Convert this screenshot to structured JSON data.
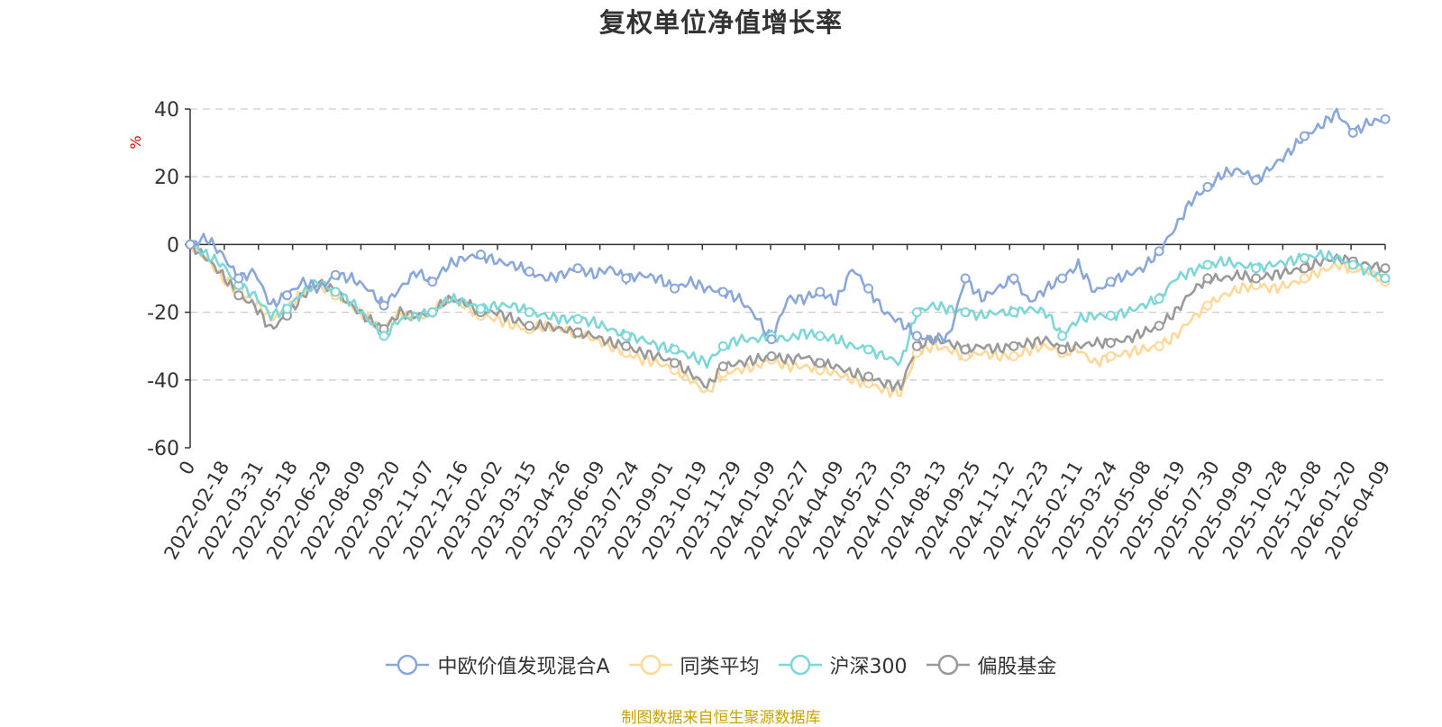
{
  "chart_data": {
    "type": "line",
    "title": "复权单位净值增长率",
    "ylabel": "%",
    "ylim": [
      -60,
      40
    ],
    "yticks": [
      "40",
      "20",
      "0",
      "-20",
      "-40",
      "-60"
    ],
    "xticks": [
      "0",
      "2022-02-18",
      "2022-03-31",
      "2022-05-18",
      "2022-06-29",
      "2022-08-09",
      "2022-09-20",
      "2022-11-07",
      "2022-12-16",
      "2023-02-02",
      "2023-03-15",
      "2023-04-26",
      "2023-06-09",
      "2023-07-24",
      "2023-09-01",
      "2023-10-19",
      "2023-11-29",
      "2024-01-09",
      "2024-02-27",
      "2024-04-09",
      "2024-05-23",
      "2024-07-03",
      "2024-08-13",
      "2024-09-25",
      "2024-11-12",
      "2024-12-23",
      "2025-02-11",
      "2025-03-24",
      "2025-05-08",
      "2025-06-19",
      "2025-07-30",
      "2025-09-09",
      "2025-10-28",
      "2025-12-08",
      "2026-01-20",
      "2026-04-09"
    ],
    "grid": true,
    "legend_position": "bottom",
    "series": [
      {
        "name": "中欧价值发现混合A",
        "color": "#8aa7d9",
        "values": [
          0,
          2,
          -3,
          -10,
          -8,
          -18,
          -15,
          -11,
          -13,
          -9,
          -10,
          -13,
          -18,
          -13,
          -8,
          -11,
          -6,
          -4,
          -3,
          -5,
          -6,
          -8,
          -10,
          -9,
          -7,
          -9,
          -7,
          -10,
          -9,
          -10,
          -13,
          -11,
          -13,
          -14,
          -16,
          -21,
          -28,
          -16,
          -16,
          -14,
          -17,
          -7,
          -13,
          -20,
          -23,
          -27,
          -28,
          -27,
          -10,
          -16,
          -13,
          -10,
          -17,
          -13,
          -10,
          -6,
          -14,
          -11,
          -9,
          -7,
          -2,
          5,
          13,
          17,
          21,
          22,
          19,
          23,
          27,
          32,
          35,
          39,
          33,
          36,
          37
        ]
      },
      {
        "name": "同类平均",
        "color": "#ffd89a",
        "values": [
          0,
          -4,
          -10,
          -14,
          -17,
          -22,
          -19,
          -14,
          -12,
          -15,
          -18,
          -22,
          -25,
          -20,
          -22,
          -20,
          -16,
          -18,
          -21,
          -22,
          -24,
          -25,
          -24,
          -25,
          -26,
          -28,
          -30,
          -32,
          -34,
          -35,
          -37,
          -40,
          -44,
          -38,
          -37,
          -36,
          -34,
          -36,
          -36,
          -37,
          -38,
          -40,
          -41,
          -43,
          -44,
          -32,
          -30,
          -31,
          -33,
          -32,
          -33,
          -33,
          -31,
          -30,
          -32,
          -31,
          -35,
          -33,
          -32,
          -31,
          -30,
          -27,
          -22,
          -18,
          -15,
          -13,
          -12,
          -13,
          -12,
          -10,
          -8,
          -6,
          -7,
          -8,
          -11
        ]
      },
      {
        "name": "沪深300",
        "color": "#7fd6d6",
        "values": [
          0,
          -3,
          -6,
          -12,
          -15,
          -21,
          -19,
          -14,
          -11,
          -14,
          -17,
          -22,
          -27,
          -22,
          -21,
          -20,
          -16,
          -17,
          -19,
          -18,
          -18,
          -20,
          -21,
          -22,
          -22,
          -23,
          -25,
          -27,
          -28,
          -30,
          -31,
          -33,
          -35,
          -30,
          -28,
          -28,
          -27,
          -28,
          -26,
          -27,
          -28,
          -30,
          -31,
          -33,
          -35,
          -20,
          -18,
          -19,
          -20,
          -21,
          -20,
          -20,
          -19,
          -20,
          -27,
          -22,
          -21,
          -21,
          -20,
          -18,
          -16,
          -10,
          -8,
          -6,
          -5,
          -6,
          -7,
          -6,
          -5,
          -4,
          -3,
          -4,
          -6,
          -8,
          -10
        ]
      },
      {
        "name": "偏股基金",
        "color": "#9a9a9a",
        "values": [
          0,
          -4,
          -9,
          -15,
          -18,
          -25,
          -21,
          -15,
          -11,
          -14,
          -18,
          -22,
          -25,
          -20,
          -21,
          -20,
          -16,
          -17,
          -20,
          -20,
          -22,
          -24,
          -24,
          -25,
          -26,
          -27,
          -29,
          -30,
          -32,
          -33,
          -35,
          -38,
          -42,
          -36,
          -35,
          -34,
          -33,
          -34,
          -33,
          -35,
          -36,
          -38,
          -39,
          -41,
          -42,
          -30,
          -28,
          -29,
          -31,
          -30,
          -31,
          -30,
          -29,
          -28,
          -31,
          -30,
          -29,
          -29,
          -28,
          -26,
          -24,
          -20,
          -14,
          -10,
          -10,
          -9,
          -10,
          -9,
          -8,
          -7,
          -5,
          -4,
          -5,
          -6,
          -7
        ]
      }
    ]
  },
  "footer": {
    "source_note": "制图数据来自恒生聚源数据库"
  }
}
